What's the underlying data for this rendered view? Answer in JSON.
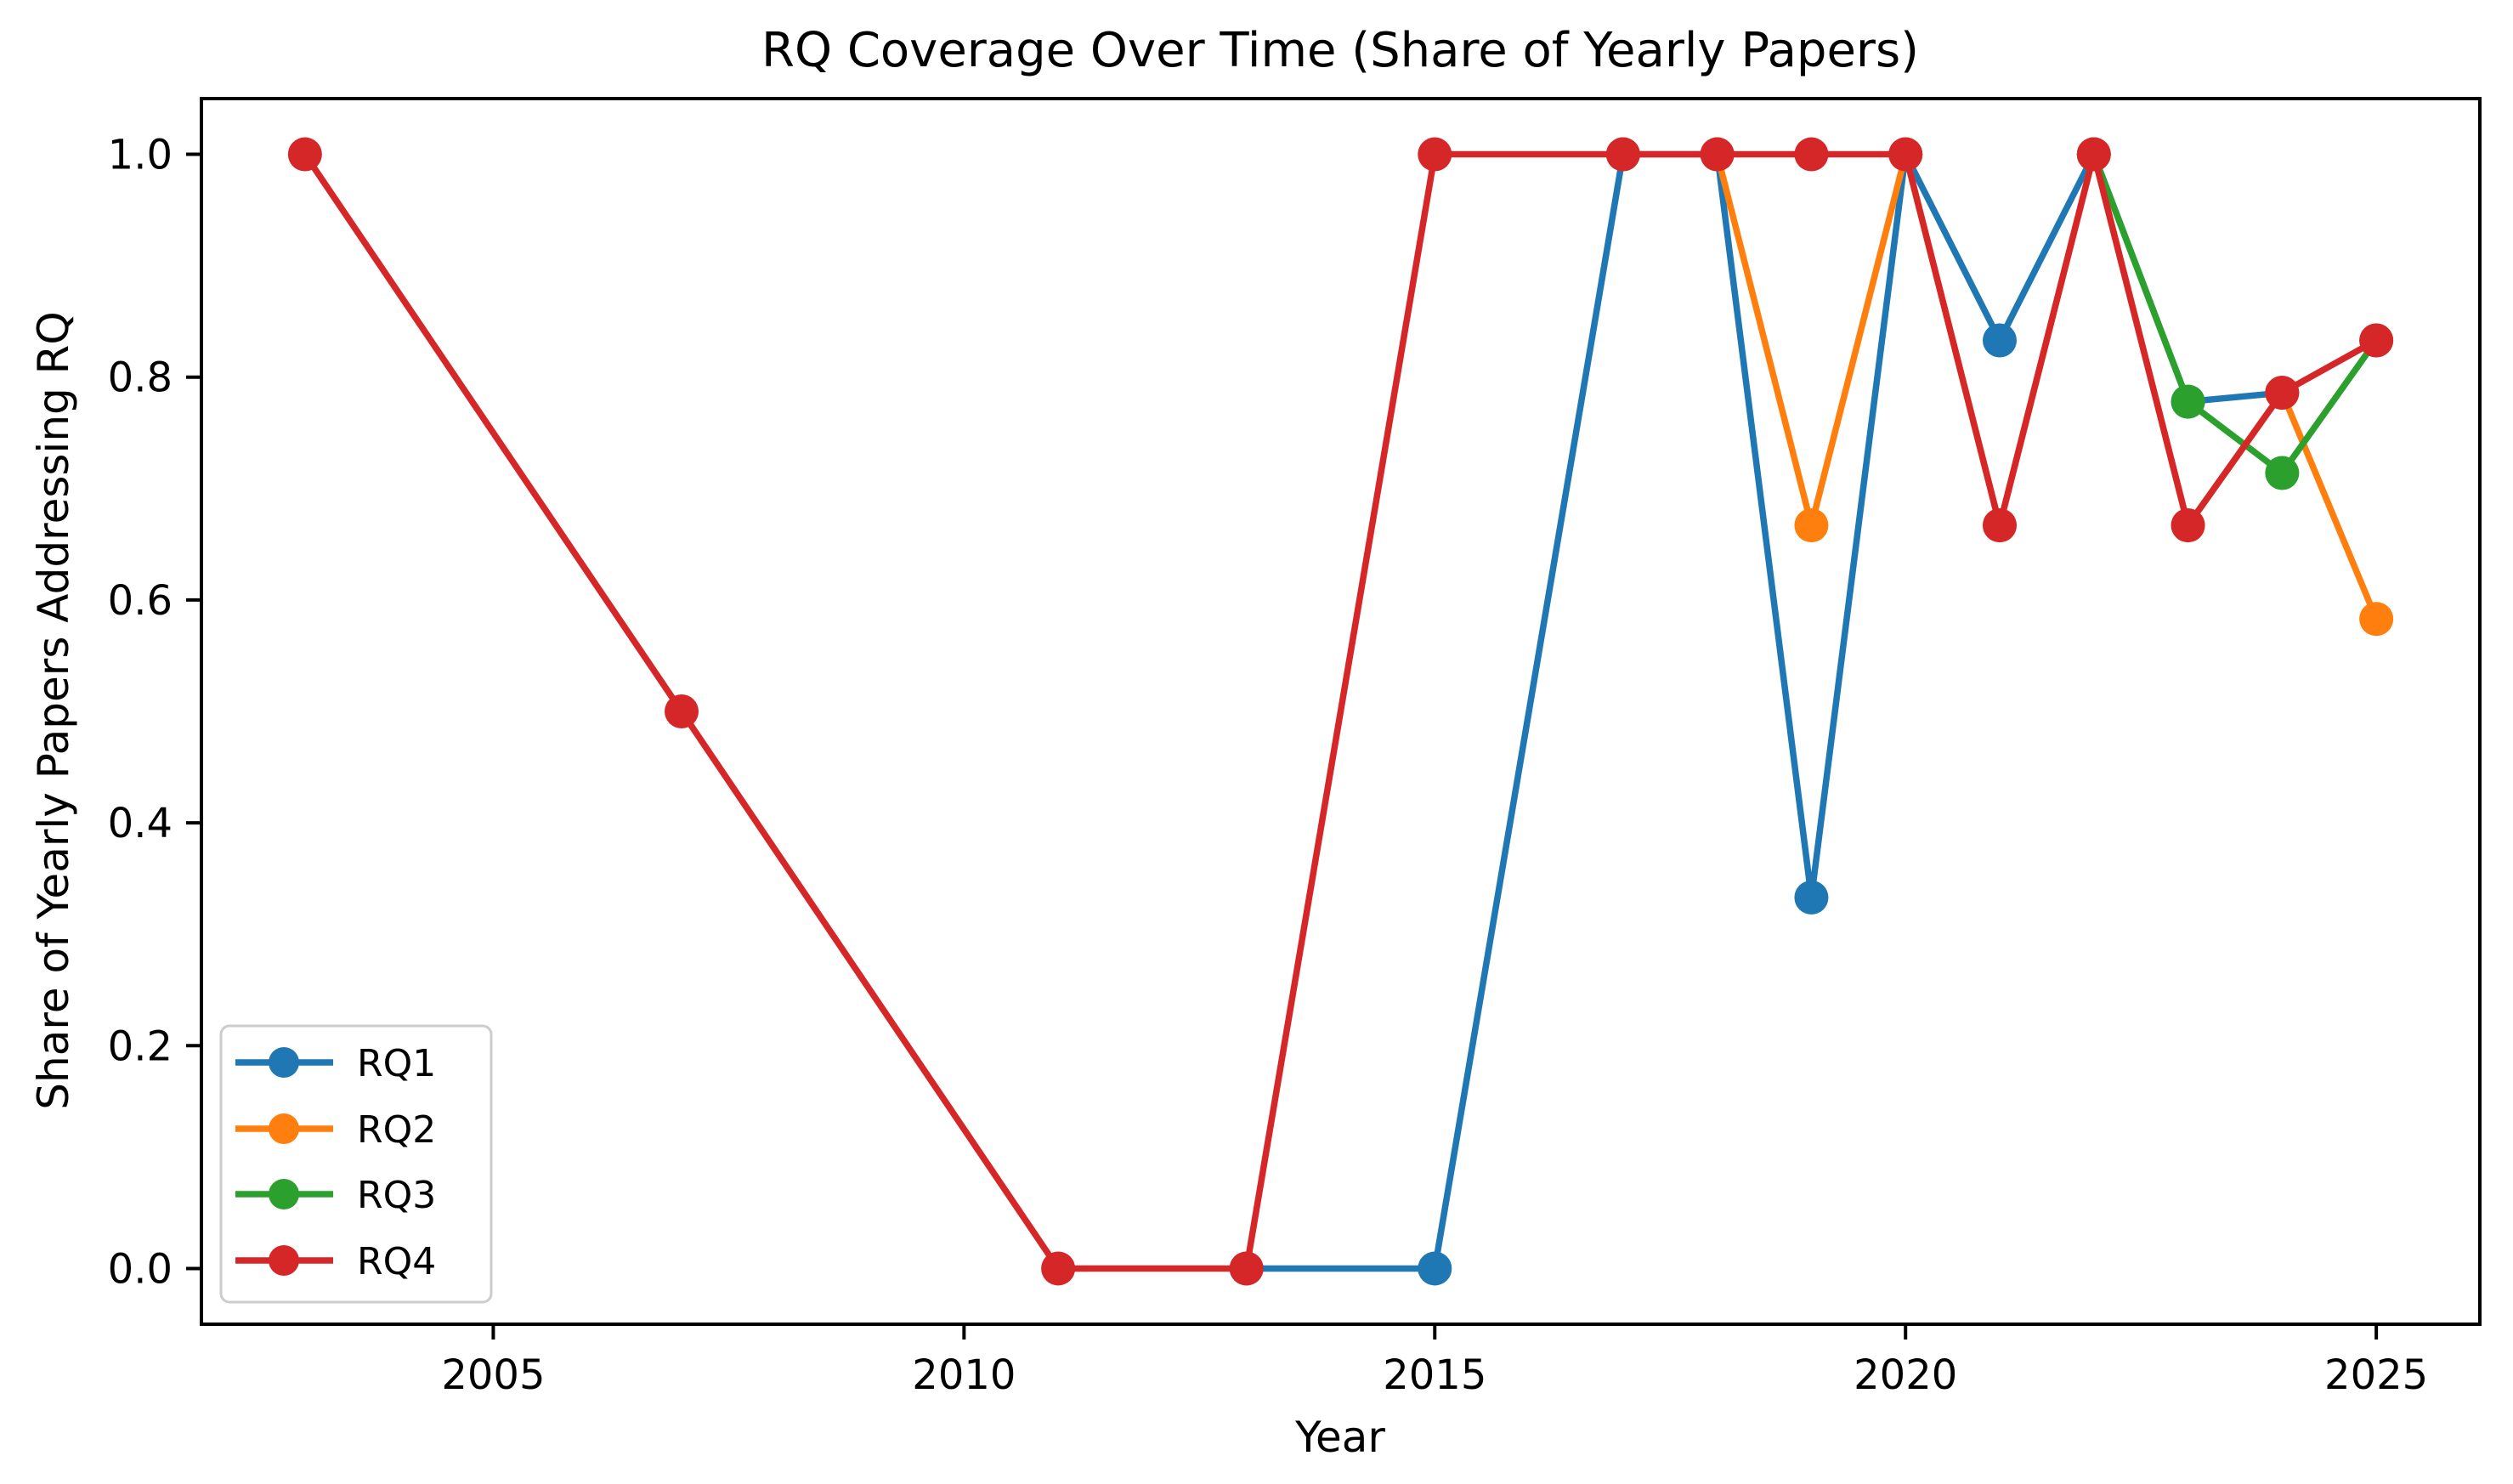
{
  "chart_data": {
    "type": "line",
    "title": "RQ Coverage Over Time (Share of Yearly Papers)",
    "xlabel": "Year",
    "ylabel": "Share of Yearly Papers Addressing RQ",
    "grid": false,
    "legend_position": "lower left",
    "xlim": [
      2001.9,
      2026.1
    ],
    "ylim": [
      -0.05,
      1.05
    ],
    "x_ticks": [
      2005,
      2010,
      2015,
      2020,
      2025
    ],
    "x_tick_labels": [
      "2005",
      "2010",
      "2015",
      "2020",
      "2025"
    ],
    "y_ticks": [
      0.0,
      0.2,
      0.4,
      0.6,
      0.8,
      1.0
    ],
    "y_tick_labels": [
      "0.0",
      "0.2",
      "0.4",
      "0.6",
      "0.8",
      "1.0"
    ],
    "axis_color": "#000000",
    "legend_border_color": "#cccccc",
    "series": [
      {
        "name": "RQ1",
        "color": "#1f77b4",
        "x": [
          2013,
          2015,
          2017,
          2018,
          2019,
          2020,
          2021,
          2022,
          2023,
          2024
        ],
        "y": [
          0.0,
          0.0,
          1.0,
          1.0,
          0.333,
          1.0,
          0.833,
          1.0,
          0.778,
          0.786
        ]
      },
      {
        "name": "RQ2",
        "color": "#ff7f0e",
        "x": [
          2018,
          2019,
          2020,
          2021,
          2022,
          2023,
          2024,
          2025
        ],
        "y": [
          1.0,
          0.667,
          1.0,
          0.667,
          1.0,
          0.667,
          0.786,
          0.583
        ]
      },
      {
        "name": "RQ3",
        "color": "#2ca02c",
        "x": [
          2022,
          2023,
          2024,
          2025
        ],
        "y": [
          1.0,
          0.778,
          0.714,
          0.833
        ]
      },
      {
        "name": "RQ4",
        "color": "#d62728",
        "x": [
          2003,
          2007,
          2011,
          2013,
          2015,
          2017,
          2018,
          2019,
          2020,
          2021,
          2022,
          2023,
          2024,
          2025
        ],
        "y": [
          1.0,
          0.5,
          0.0,
          0.0,
          1.0,
          1.0,
          1.0,
          1.0,
          1.0,
          0.667,
          1.0,
          0.667,
          0.786,
          0.833
        ]
      }
    ]
  }
}
